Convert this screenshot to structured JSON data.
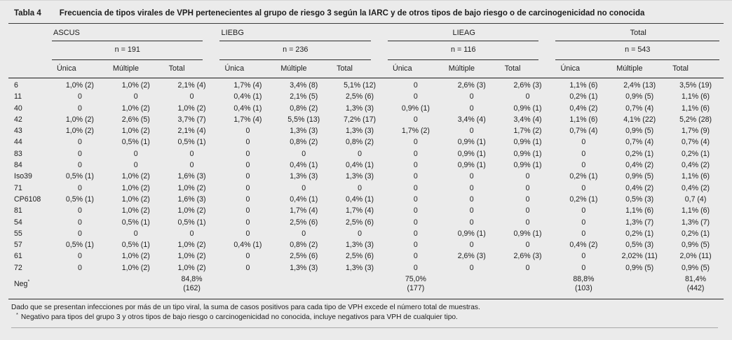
{
  "title": {
    "label": "Tabla 4",
    "text": "Frecuencia de tipos virales de VPH pertenecientes al grupo de riesgo 3 según la IARC y de otros tipos de bajo riesgo o de carcinogenicidad no conocida"
  },
  "table": {
    "groups": [
      {
        "name": "ASCUS",
        "n": "n = 191",
        "columns": [
          "Única",
          "Múltiple",
          "Total"
        ]
      },
      {
        "name": "LIEBG",
        "n": "n = 236",
        "columns": [
          "Única",
          "Múltiple",
          "Total"
        ]
      },
      {
        "name": "LIEAG",
        "n": "n = 116",
        "columns": [
          "Única",
          "Múltiple",
          "Total"
        ]
      },
      {
        "name": "Total",
        "n": "n = 543",
        "columns": [
          "Única",
          "Múltiple",
          "Total"
        ]
      }
    ],
    "rows": [
      {
        "label": "6",
        "cells": [
          "1,0% (2)",
          "1,0% (2)",
          "2,1% (4)",
          "1,7% (4)",
          "3,4% (8)",
          "5,1% (12)",
          "0",
          "2,6% (3)",
          "2,6% (3)",
          "1,1% (6)",
          "2,4% (13)",
          "3,5% (19)"
        ]
      },
      {
        "label": "11",
        "cells": [
          "0",
          "0",
          "0",
          "0,4% (1)",
          "2,1% (5)",
          "2,5% (6)",
          "0",
          "0",
          "0",
          "0,2% (1)",
          "0,9% (5)",
          "1,1% (6)"
        ]
      },
      {
        "label": "40",
        "cells": [
          "0",
          "1,0% (2)",
          "1,0% (2)",
          "0,4% (1)",
          "0,8% (2)",
          "1,3% (3)",
          "0,9% (1)",
          "0",
          "0,9% (1)",
          "0,4% (2)",
          "0,7% (4)",
          "1,1% (6)"
        ]
      },
      {
        "label": "42",
        "cells": [
          "1,0% (2)",
          "2,6% (5)",
          "3,7% (7)",
          "1,7% (4)",
          "5,5% (13)",
          "7,2% (17)",
          "0",
          "3,4% (4)",
          "3,4% (4)",
          "1,1% (6)",
          "4,1% (22)",
          "5,2% (28)"
        ]
      },
      {
        "label": "43",
        "cells": [
          "1,0% (2)",
          "1,0% (2)",
          "2,1% (4)",
          "0",
          "1,3% (3)",
          "1,3% (3)",
          "1,7% (2)",
          "0",
          "1,7% (2)",
          "0,7% (4)",
          "0,9% (5)",
          "1,7% (9)"
        ]
      },
      {
        "label": "44",
        "cells": [
          "0",
          "0,5% (1)",
          "0,5% (1)",
          "0",
          "0,8% (2)",
          "0,8% (2)",
          "0",
          "0,9% (1)",
          "0,9% (1)",
          "0",
          "0,7% (4)",
          "0,7% (4)"
        ]
      },
      {
        "label": "83",
        "cells": [
          "0",
          "0",
          "0",
          "0",
          "0",
          "0",
          "0",
          "0,9% (1)",
          "0,9% (1)",
          "0",
          "0,2% (1)",
          "0,2% (1)"
        ]
      },
      {
        "label": "84",
        "cells": [
          "0",
          "0",
          "0",
          "0",
          "0,4% (1)",
          "0,4% (1)",
          "0",
          "0,9% (1)",
          "0,9% (1)",
          "0",
          "0,4% (2)",
          "0,4% (2)"
        ]
      },
      {
        "label": "Iso39",
        "cells": [
          "0,5% (1)",
          "1,0% (2)",
          "1,6% (3)",
          "0",
          "1,3% (3)",
          "1,3% (3)",
          "0",
          "0",
          "0",
          "0,2% (1)",
          "0,9% (5)",
          "1,1% (6)"
        ]
      },
      {
        "label": "71",
        "cells": [
          "0",
          "1,0% (2)",
          "1,0% (2)",
          "0",
          "0",
          "0",
          "0",
          "0",
          "0",
          "0",
          "0,4% (2)",
          "0,4% (2)"
        ]
      },
      {
        "label": "CP6108",
        "cells": [
          "0,5% (1)",
          "1,0% (2)",
          "1,6% (3)",
          "0",
          "0,4% (1)",
          "0,4% (1)",
          "0",
          "0",
          "0",
          "0,2% (1)",
          "0,5% (3)",
          "0,7 (4)"
        ]
      },
      {
        "label": "81",
        "cells": [
          "0",
          "1,0% (2)",
          "1,0% (2)",
          "0",
          "1,7% (4)",
          "1,7% (4)",
          "0",
          "0",
          "0",
          "0",
          "1,1% (6)",
          "1,1% (6)"
        ]
      },
      {
        "label": "54",
        "cells": [
          "0",
          "0,5% (1)",
          "0,5% (1)",
          "0",
          "2,5% (6)",
          "2,5% (6)",
          "0",
          "0",
          "0",
          "0",
          "1,3% (7)",
          "1,3% (7)"
        ]
      },
      {
        "label": "55",
        "cells": [
          "0",
          "0",
          "0",
          "0",
          "0",
          "0",
          "0",
          "0,9% (1)",
          "0,9% (1)",
          "0",
          "0,2% (1)",
          "0,2% (1)"
        ]
      },
      {
        "label": "57",
        "cells": [
          "0,5% (1)",
          "0,5% (1)",
          "1,0% (2)",
          "0,4% (1)",
          "0,8% (2)",
          "1,3% (3)",
          "0",
          "0",
          "0",
          "0,4% (2)",
          "0,5% (3)",
          "0,9% (5)"
        ]
      },
      {
        "label": "61",
        "cells": [
          "0",
          "1,0% (2)",
          "1,0% (2)",
          "0",
          "2,5% (6)",
          "2,5% (6)",
          "0",
          "2,6% (3)",
          "2,6% (3)",
          "0",
          "2,02% (11)",
          "2,0% (11)"
        ]
      },
      {
        "label": "72",
        "cells": [
          "0",
          "1,0% (2)",
          "1,0% (2)",
          "0",
          "1,3% (3)",
          "1,3% (3)",
          "0",
          "0",
          "0",
          "0",
          "0,9% (5)",
          "0,9% (5)"
        ]
      },
      {
        "label": "Neg",
        "sup": "*",
        "neg": true,
        "cells": [
          "",
          "",
          "84,8%\n(162)",
          "",
          "",
          "",
          "75,0%\n(177)",
          "",
          "",
          "88,8%\n(103)",
          "",
          "81,4%\n(442)"
        ]
      }
    ]
  },
  "footnotes": {
    "note1": "Dado que se presentan infecciones por más de un tipo viral, la suma de casos positivos para cada tipo de VPH excede el número total de muestras.",
    "note2_marker": "*",
    "note2": "Negativo para tipos del grupo 3 y otros tipos de bajo riesgo o carcinogenicidad no conocida, incluye negativos para VPH de cualquier tipo."
  },
  "colors": {
    "background": "#ebebeb",
    "text": "#1c1c1c",
    "rule": "#2b2b2b"
  }
}
